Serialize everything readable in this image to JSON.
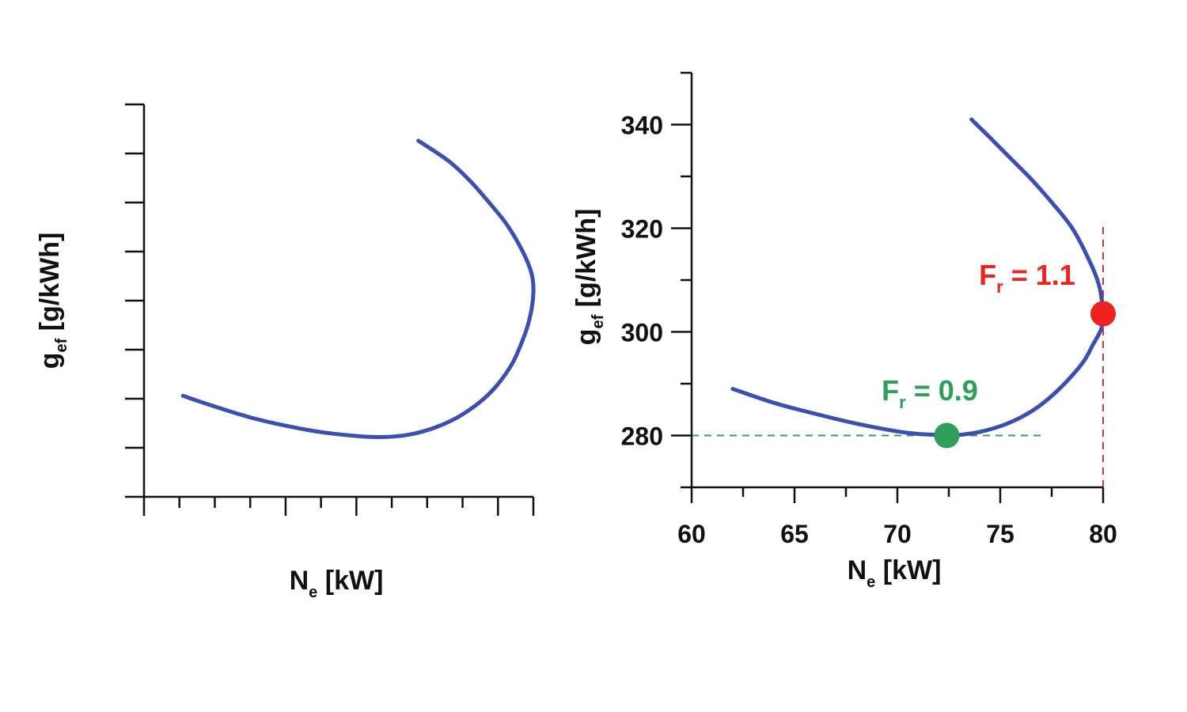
{
  "chart_data": [
    {
      "type": "line",
      "title": "",
      "xlabel_main": "N",
      "xlabel_sub": "e",
      "xlabel_unit": " [kW]",
      "ylabel_main": "g",
      "ylabel_sub": "ef",
      "ylabel_unit": " [g/kWh]",
      "tick_labels_shown": false,
      "xlim": [
        58,
        80
      ],
      "ylim": [
        266,
        346
      ],
      "x_ticks": [
        58,
        60,
        62,
        64,
        66,
        68,
        70,
        72,
        74,
        76,
        78,
        80
      ],
      "x_major_ticks": [
        58,
        66,
        70,
        78,
        80
      ],
      "y_ticks": [
        266,
        276,
        286,
        296,
        306,
        316,
        326,
        336,
        346
      ],
      "grid": false,
      "series": [
        {
          "color": "#3a4fae",
          "x": [
            60.2,
            62,
            64,
            66,
            68,
            70,
            71.5,
            73,
            74.5,
            76,
            77.5,
            78.7,
            79.4,
            79.8,
            80.0,
            79.9,
            79.4,
            78.5,
            77.5,
            76.4,
            75.2,
            73.5
          ],
          "y": [
            286.6,
            284.4,
            282.2,
            280.5,
            279.2,
            278.4,
            278.2,
            278.7,
            280.2,
            282.8,
            287.0,
            292.5,
            298.0,
            302.5,
            307.5,
            311.5,
            316.0,
            321.5,
            326.0,
            330.5,
            334.5,
            338.6
          ]
        }
      ]
    },
    {
      "type": "line",
      "title": "",
      "xlabel_main": "N",
      "xlabel_sub": "e",
      "xlabel_unit": " [kW]",
      "ylabel_main": "g",
      "ylabel_sub": "ef",
      "ylabel_unit": " [g/kWh]",
      "xlim": [
        60,
        80
      ],
      "ylim": [
        270,
        350
      ],
      "x_ticks": [
        60,
        65,
        70,
        75,
        80
      ],
      "x_tick_labels": [
        "60",
        "65",
        "70",
        "75",
        "80"
      ],
      "x_minor_ticks": [
        62.5,
        67.5,
        72.5,
        77.5
      ],
      "y_ticks": [
        280,
        300,
        320,
        340
      ],
      "y_tick_labels": [
        "280",
        "300",
        "320",
        "340"
      ],
      "y_minor_ticks": [
        270,
        290,
        310,
        330,
        350
      ],
      "grid": false,
      "series": [
        {
          "color": "#3a4fae",
          "x": [
            62,
            64,
            66,
            68,
            70,
            71,
            72,
            72.4,
            73,
            74,
            75,
            76,
            77,
            78,
            79,
            79.5,
            79.9,
            80,
            79.8,
            79.3,
            78.5,
            77.5,
            76.5,
            75.5,
            74.5,
            73.6
          ],
          "y": [
            289,
            286.3,
            284.2,
            282.3,
            280.8,
            280.3,
            280.1,
            280.0,
            280.1,
            280.7,
            281.8,
            283.5,
            286,
            289.5,
            294,
            297.5,
            300.5,
            303.5,
            309,
            314,
            320,
            325,
            329.5,
            333.5,
            337.5,
            341
          ]
        }
      ],
      "reference_lines": [
        {
          "orientation": "horizontal",
          "value": 280,
          "from": 60,
          "to": 77,
          "color": "#3a9a5a"
        },
        {
          "orientation": "vertical",
          "value": 80,
          "from": 270,
          "to": 321,
          "color": "#e03030"
        }
      ],
      "points": [
        {
          "label_main": "F",
          "label_sub": "r",
          "label_rest": " = 0.9",
          "x": 72.4,
          "y": 280,
          "color": "#2e9e5b"
        },
        {
          "label_main": "F",
          "label_sub": "r",
          "label_rest": " = 1.1",
          "x": 80.0,
          "y": 303.5,
          "color": "#ee2222"
        }
      ]
    }
  ]
}
